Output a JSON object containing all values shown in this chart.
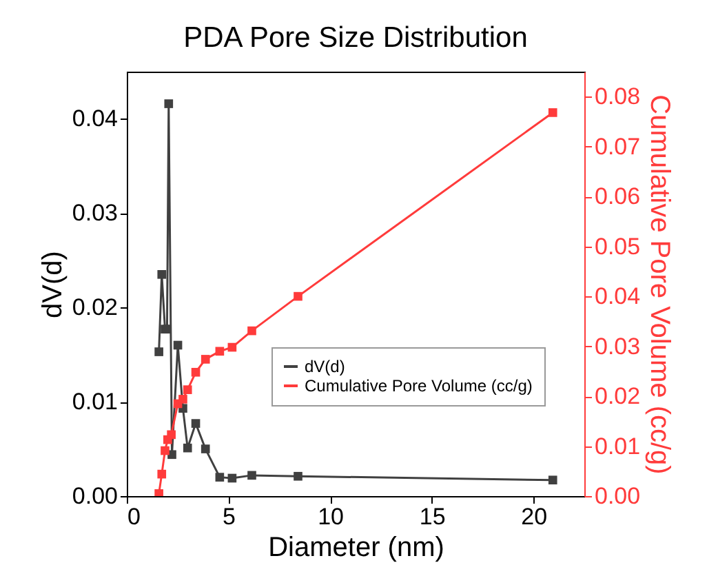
{
  "chart_data": {
    "type": "line",
    "title": "PDA Pore Size Distribution",
    "xlabel": "Diameter (nm)",
    "ylabel": "dV(d)",
    "y2label": "Cumulative Pore Volume (cc/g)",
    "marker": "square",
    "legend": "right",
    "grid": false,
    "xlim": [
      0,
      22.5
    ],
    "xticks": [
      0,
      5,
      10,
      15,
      20
    ],
    "ylim": [
      0,
      0.045
    ],
    "yticks": [
      {
        "value": 0,
        "label": "0.00"
      },
      {
        "value": 0.01,
        "label": "0.01"
      },
      {
        "value": 0.02,
        "label": "0.02"
      },
      {
        "value": 0.03,
        "label": "0.03"
      },
      {
        "value": 0.04,
        "label": "0.04"
      }
    ],
    "y2lim": [
      0,
      0.085
    ],
    "y2ticks": [
      {
        "value": 0,
        "label": "0.00"
      },
      {
        "value": 0.01,
        "label": "0.01"
      },
      {
        "value": 0.02,
        "label": "0.02"
      },
      {
        "value": 0.03,
        "label": "0.03"
      },
      {
        "value": 0.04,
        "label": "0.04"
      },
      {
        "value": 0.05,
        "label": "0.05"
      },
      {
        "value": 0.06,
        "label": "0.06"
      },
      {
        "value": 0.07,
        "label": "0.07"
      },
      {
        "value": 0.08,
        "label": "0.08"
      }
    ],
    "series": [
      {
        "name": "dV(d)",
        "color": "#404040",
        "x": [
          1.58,
          1.72,
          1.88,
          1.98,
          2.06,
          2.22,
          2.51,
          2.76,
          2.99,
          3.39,
          3.87,
          4.57,
          5.18,
          6.15,
          8.42,
          20.95
        ],
        "values": [
          0.0153,
          0.0235,
          0.0177,
          0.0177,
          0.0416,
          0.0044,
          0.016,
          0.0093,
          0.0051,
          0.0077,
          0.005,
          0.002,
          0.0019,
          0.0022,
          0.0021,
          0.0017
        ]
      },
      {
        "name": "Cumulative Pore Volume (cc/g)",
        "color": "#ff3b3b",
        "axis": "y2",
        "x": [
          1.58,
          1.72,
          1.88,
          2.01,
          2.19,
          2.51,
          2.76,
          2.99,
          3.39,
          3.87,
          4.57,
          5.18,
          6.15,
          8.42,
          20.95
        ],
        "values": [
          0.0005,
          0.0044,
          0.0091,
          0.0113,
          0.0123,
          0.0185,
          0.0194,
          0.0213,
          0.0248,
          0.0274,
          0.029,
          0.0298,
          0.0331,
          0.04,
          0.0768
        ]
      }
    ]
  }
}
